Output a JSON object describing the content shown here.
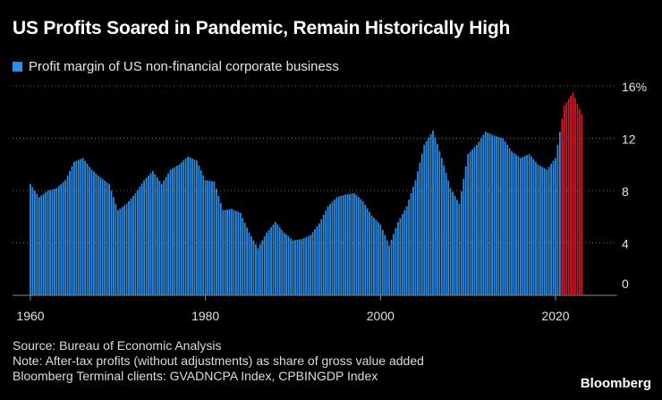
{
  "title": "US Profits Soared in Pandemic, Remain Historically High",
  "legend_label": "Profit margin of US non-financial corporate business",
  "footer": {
    "source": "Source: Bureau of Economic Analysis",
    "note": "Note: After-tax profits (without adjustments) as share of gross value added",
    "terminal": "Bloomberg Terminal clients: GVADNCPA Index, CPBINGDP Index"
  },
  "brand": "Bloomberg",
  "colors": {
    "bar": "#2a8ee6",
    "recent": "#d11a2a",
    "grid": "#6a6a6a",
    "tick_text": "#e0e0e0"
  },
  "chart_data": {
    "type": "bar",
    "title": "US Profits Soared in Pandemic, Remain Historically High",
    "xlabel": "",
    "ylabel": "",
    "ylim": [
      0,
      17
    ],
    "y_ticks": [
      0,
      4,
      8,
      12,
      16
    ],
    "y_tick_labels": [
      "0",
      "4",
      "8",
      "12",
      "16%"
    ],
    "x_ticks": [
      1960,
      1980,
      2000,
      2020
    ],
    "x_tick_labels": [
      "1960",
      "1980",
      "2000",
      "2020"
    ],
    "grid": true,
    "legend": "top-left",
    "series": [
      {
        "name": "Profit margin of US non-financial corporate business",
        "x": [
          1960,
          1961,
          1962,
          1963,
          1964,
          1965,
          1966,
          1967,
          1968,
          1969,
          1970,
          1971,
          1972,
          1973,
          1974,
          1975,
          1976,
          1977,
          1978,
          1979,
          1980,
          1981,
          1982,
          1983,
          1984,
          1985,
          1986,
          1987,
          1988,
          1989,
          1990,
          1991,
          1992,
          1993,
          1994,
          1995,
          1996,
          1997,
          1998,
          1999,
          2000,
          2001,
          2002,
          2003,
          2004,
          2005,
          2006,
          2007,
          2008,
          2009,
          2010,
          2011,
          2012,
          2013,
          2014,
          2015,
          2016,
          2017,
          2018,
          2019,
          2020,
          2021,
          2022,
          2023
        ],
        "values": [
          8.5,
          7.5,
          8.0,
          8.2,
          8.8,
          10.2,
          10.5,
          9.6,
          9.0,
          8.5,
          6.5,
          7.0,
          7.8,
          8.8,
          9.5,
          8.5,
          9.6,
          10.0,
          10.6,
          10.3,
          8.8,
          8.7,
          6.5,
          6.6,
          6.3,
          4.8,
          3.6,
          4.8,
          5.6,
          4.8,
          4.2,
          4.3,
          4.6,
          5.5,
          6.8,
          7.5,
          7.7,
          7.8,
          7.2,
          6.1,
          5.4,
          3.8,
          5.6,
          6.8,
          8.8,
          11.5,
          12.6,
          10.5,
          8.2,
          7.0,
          10.8,
          11.5,
          12.5,
          12.2,
          12.0,
          11.0,
          10.5,
          10.8,
          10.0,
          9.6,
          10.5,
          14.5,
          15.5,
          13.8
        ]
      }
    ],
    "highlight_from_year": 2020.75
  }
}
